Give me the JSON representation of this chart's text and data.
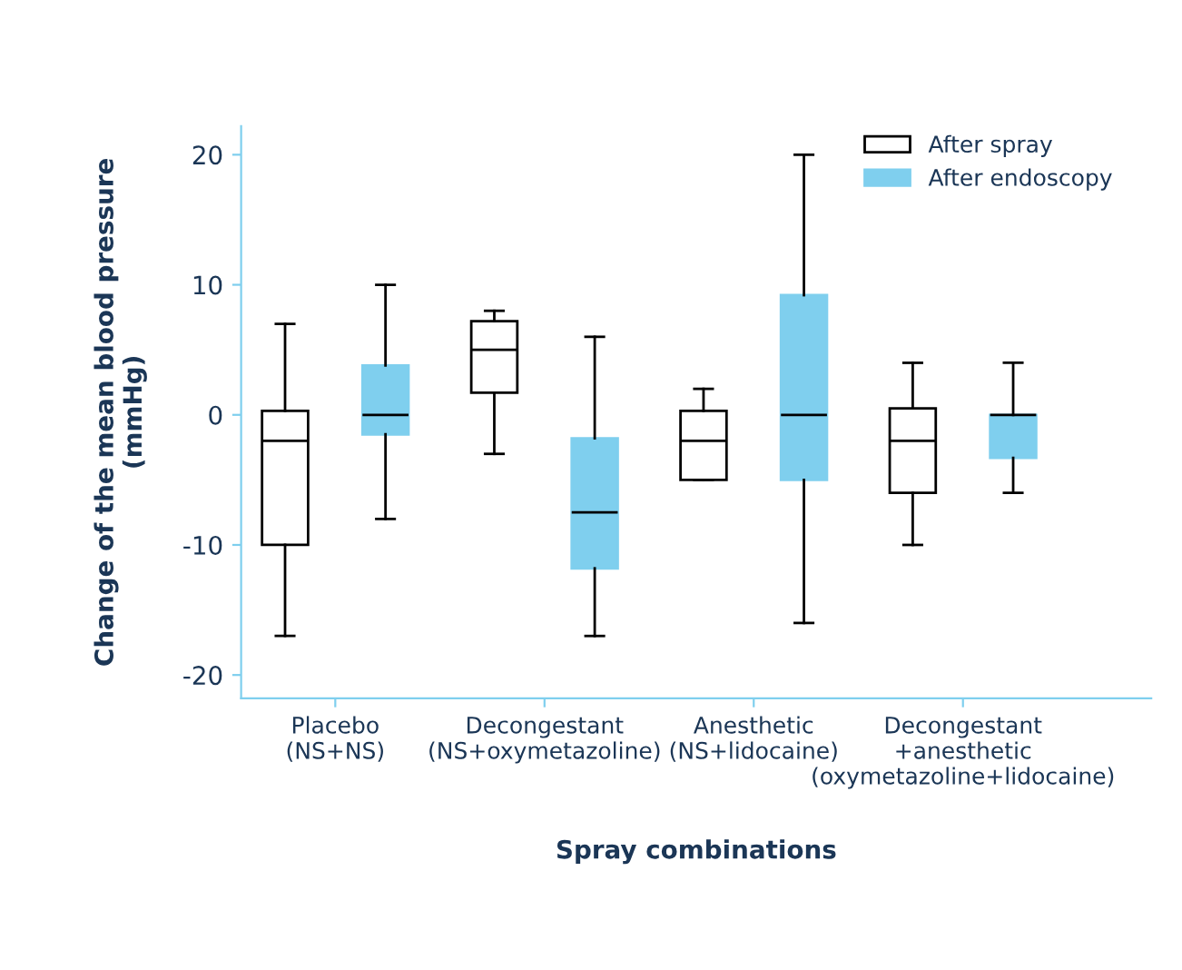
{
  "chart_data": {
    "type": "box",
    "xlabel": "Spray combinations",
    "ylabel": "Change of the mean blood pressure\n(mmHg)",
    "categories": [
      "Placebo\n(NS+NS)",
      "Decongestant\n(NS+oxymetazoline)",
      "Anesthetic\n(NS+lidocaine)",
      "Decongestant\n+anesthetic\n(oxymetazoline+lidocaine)"
    ],
    "series": [
      {
        "name": "After spray",
        "color": "#ffffff",
        "boxes": [
          {
            "low": -17,
            "q1": -10,
            "median": -2,
            "q3": 0.3,
            "high": 7
          },
          {
            "low": -3,
            "q1": 1.7,
            "median": 5,
            "q3": 7.2,
            "high": 8
          },
          {
            "low": -5,
            "q1": -5,
            "median": -2,
            "q3": 0.3,
            "high": 2
          },
          {
            "low": -10,
            "q1": -6,
            "median": -2,
            "q3": 0.5,
            "high": 4
          }
        ]
      },
      {
        "name": "After endoscopy",
        "color": "#7fcfee",
        "boxes": [
          {
            "low": -8,
            "q1": -1.5,
            "median": 0,
            "q3": 3.8,
            "high": 10
          },
          {
            "low": -17,
            "q1": -11.8,
            "median": -7.5,
            "q3": -1.8,
            "high": 6
          },
          {
            "low": -16,
            "q1": -5,
            "median": 0,
            "q3": 9.2,
            "high": 20
          },
          {
            "low": -6,
            "q1": -3.3,
            "median": 0,
            "q3": 0,
            "high": 4
          }
        ]
      }
    ],
    "ylim": [
      -21.8,
      22.2
    ],
    "yticks": [
      -20,
      -10,
      0,
      10,
      20
    ],
    "grid": false,
    "legend": "top right"
  }
}
